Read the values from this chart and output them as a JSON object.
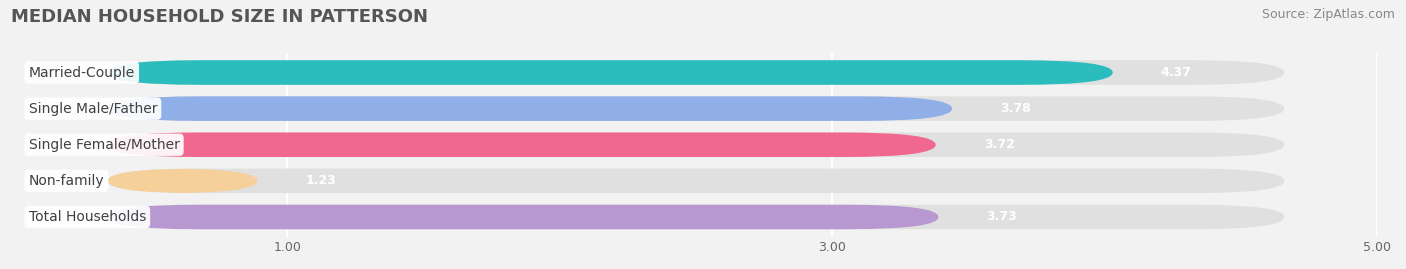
{
  "title": "MEDIAN HOUSEHOLD SIZE IN PATTERSON",
  "source": "Source: ZipAtlas.com",
  "categories": [
    "Married-Couple",
    "Single Male/Father",
    "Single Female/Mother",
    "Non-family",
    "Total Households"
  ],
  "values": [
    4.37,
    3.78,
    3.72,
    1.23,
    3.73
  ],
  "colors": [
    "#2bbdbd",
    "#90aee8",
    "#f06890",
    "#f5d09a",
    "#b898d0"
  ],
  "xlim": [
    0,
    5.0
  ],
  "xticks": [
    1.0,
    3.0,
    5.0
  ],
  "background_color": "#f2f2f2",
  "bar_bg_color": "#e0e0e0",
  "bar_height": 0.68,
  "title_fontsize": 13,
  "source_fontsize": 9,
  "label_fontsize": 10,
  "value_fontsize": 9
}
